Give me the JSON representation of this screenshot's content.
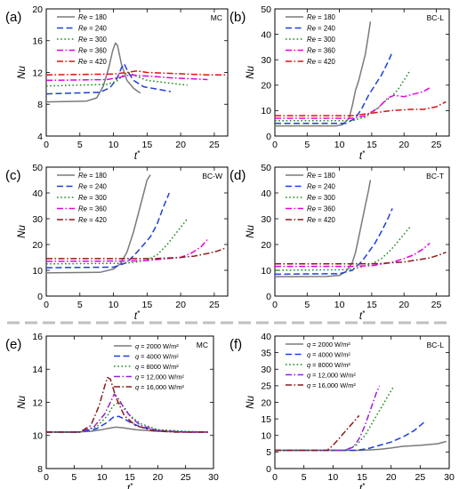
{
  "chart_data": [
    {
      "type": "line",
      "panel_label": "(a)",
      "tag": "MC",
      "xlabel": "t*",
      "ylabel": "Nu",
      "xlim": [
        0,
        27
      ],
      "ylim": [
        4,
        20
      ],
      "xticks": [
        0,
        5,
        10,
        15,
        20,
        25
      ],
      "yticks": [
        4,
        8,
        12,
        16,
        20
      ],
      "legend": "top-left",
      "series": [
        {
          "name": "Re = 180",
          "color": "#7a7a7a",
          "dash": "solid",
          "x": [
            0,
            6,
            7.5,
            8.5,
            9.3,
            9.9,
            10.3,
            10.6,
            11.2,
            12,
            13,
            14
          ],
          "y": [
            8.3,
            8.4,
            8.8,
            10.3,
            12.6,
            14.8,
            15.7,
            15.4,
            13.0,
            11.0,
            10.0,
            9.4
          ]
        },
        {
          "name": "Re = 240",
          "color": "#1e3fdc",
          "dash": "dash",
          "x": [
            0,
            8,
            9.5,
            10.5,
            11.2,
            11.6,
            12.2,
            13,
            14.5,
            16.5,
            18.5
          ],
          "y": [
            9.3,
            9.5,
            10.1,
            11.2,
            12.6,
            13.1,
            12.0,
            11.0,
            10.2,
            9.9,
            9.6
          ]
        },
        {
          "name": "Re = 300",
          "color": "#1c8a1c",
          "dash": "dot",
          "x": [
            0,
            9,
            10.5,
            11.5,
            12.2,
            13.5,
            15,
            17,
            19,
            21
          ],
          "y": [
            10.3,
            10.5,
            10.9,
            11.7,
            12.0,
            11.5,
            11.0,
            10.8,
            10.6,
            10.4
          ]
        },
        {
          "name": "Re = 360",
          "color": "#e600e6",
          "dash": "dashdot",
          "x": [
            0,
            9,
            11,
            12.5,
            14,
            16,
            19,
            22,
            24
          ],
          "y": [
            11.0,
            11.1,
            11.4,
            11.7,
            11.6,
            11.5,
            11.3,
            11.2,
            11.1
          ]
        },
        {
          "name": "Re = 420",
          "color": "#e01010",
          "dash": "dashdot",
          "x": [
            0,
            10,
            12,
            13.5,
            15,
            18,
            21,
            24,
            27
          ],
          "y": [
            11.7,
            11.8,
            12.0,
            12.2,
            12.0,
            11.9,
            11.8,
            11.7,
            11.7
          ]
        }
      ]
    },
    {
      "type": "line",
      "panel_label": "(b)",
      "tag": "BC-L",
      "xlabel": "t*",
      "ylabel": "Nu",
      "xlim": [
        0,
        27
      ],
      "ylim": [
        0,
        50
      ],
      "xticks": [
        0,
        5,
        10,
        15,
        20,
        25
      ],
      "yticks": [
        0,
        10,
        20,
        30,
        40,
        50
      ],
      "legend": "top-left",
      "series": [
        {
          "name": "Re = 180",
          "color": "#7a7a7a",
          "dash": "solid",
          "x": [
            0,
            9.5,
            10.5,
            11.5,
            12,
            12.5,
            13,
            13.5,
            14,
            14.5,
            14.8
          ],
          "y": [
            4.0,
            4.0,
            4.5,
            7.0,
            12.0,
            18.0,
            22.0,
            27.0,
            32.0,
            40.0,
            45.0
          ]
        },
        {
          "name": "Re = 240",
          "color": "#1e3fdc",
          "dash": "dash",
          "x": [
            0,
            11,
            12.5,
            13.5,
            14.5,
            15.5,
            16.5,
            17.5,
            18.2
          ],
          "y": [
            5.0,
            5.0,
            7.0,
            11.0,
            16.0,
            20.0,
            24.0,
            29.0,
            33.0
          ]
        },
        {
          "name": "Re = 300",
          "color": "#1c8a1c",
          "dash": "dot",
          "x": [
            0,
            12,
            14,
            15.5,
            17,
            18,
            19,
            20,
            21
          ],
          "y": [
            6.0,
            6.0,
            7.5,
            10.0,
            13.5,
            15.5,
            18.0,
            22.0,
            26.0
          ]
        },
        {
          "name": "Re = 360",
          "color": "#e600e6",
          "dash": "dashdot",
          "x": [
            0,
            12,
            14,
            16,
            17.5,
            18.5,
            20,
            21.5,
            23,
            24
          ],
          "y": [
            7.0,
            7.0,
            8.0,
            11.0,
            15.0,
            16.0,
            15.5,
            16.5,
            17.5,
            19.0
          ]
        },
        {
          "name": "Re = 420",
          "color": "#e01010",
          "dash": "dashdot",
          "x": [
            0,
            12,
            15,
            18,
            21,
            23,
            25,
            26.5
          ],
          "y": [
            8.0,
            8.0,
            9.0,
            10.0,
            10.5,
            10.5,
            11.5,
            13.5
          ]
        }
      ]
    },
    {
      "type": "line",
      "panel_label": "(c)",
      "tag": "BC-W",
      "xlabel": "t*",
      "ylabel": "Nu",
      "xlim": [
        0,
        27
      ],
      "ylim": [
        0,
        50
      ],
      "xticks": [
        0,
        5,
        10,
        15,
        20,
        25
      ],
      "yticks": [
        0,
        10,
        20,
        30,
        40,
        50
      ],
      "legend": "top-left",
      "series": [
        {
          "name": "Re = 180",
          "color": "#7a7a7a",
          "dash": "solid",
          "x": [
            0,
            8,
            10,
            11,
            12,
            13,
            13.5,
            14,
            14.5,
            15,
            15.5
          ],
          "y": [
            9.0,
            9.2,
            10.5,
            12.5,
            17.0,
            25.0,
            30.0,
            35.0,
            40.0,
            45.0,
            47.0
          ]
        },
        {
          "name": "Re = 240",
          "color": "#1e3fdc",
          "dash": "dash",
          "x": [
            0,
            10,
            12,
            13.5,
            14.5,
            15.5,
            16.5,
            17.5,
            18.3
          ],
          "y": [
            11.0,
            11.2,
            13.0,
            17.0,
            20.0,
            23.0,
            28.0,
            35.0,
            40.0
          ]
        },
        {
          "name": "Re = 300",
          "color": "#1c8a1c",
          "dash": "dot",
          "x": [
            0,
            11,
            13,
            15,
            16.5,
            18,
            19.5,
            21
          ],
          "y": [
            12.5,
            12.7,
            13.0,
            14.0,
            16.0,
            20.0,
            25.0,
            30.0
          ]
        },
        {
          "name": "Re = 360",
          "color": "#e600e6",
          "dash": "dashdot",
          "x": [
            0,
            12,
            15,
            18,
            20,
            21.5,
            23,
            24
          ],
          "y": [
            13.5,
            13.6,
            13.8,
            14.5,
            15.0,
            16.5,
            19.0,
            22.0
          ]
        },
        {
          "name": "Re = 420",
          "color": "#8b1a1a",
          "dash": "dashdot",
          "x": [
            0,
            12,
            16,
            20,
            22,
            24,
            25.5,
            26.5
          ],
          "y": [
            14.5,
            14.5,
            14.5,
            15.0,
            15.5,
            16.5,
            17.5,
            18.5
          ]
        }
      ]
    },
    {
      "type": "line",
      "panel_label": "(d)",
      "tag": "BC-T",
      "xlabel": "t*",
      "ylabel": "Nu",
      "xlim": [
        0,
        27
      ],
      "ylim": [
        0,
        50
      ],
      "xticks": [
        0,
        5,
        10,
        15,
        20,
        25
      ],
      "yticks": [
        0,
        10,
        20,
        30,
        40,
        50
      ],
      "legend": "top-left",
      "series": [
        {
          "name": "Re = 180",
          "color": "#7a7a7a",
          "dash": "solid",
          "x": [
            0,
            8,
            10,
            11,
            12,
            12.5,
            13,
            13.5,
            14,
            14.5,
            14.8
          ],
          "y": [
            7.5,
            7.6,
            8.0,
            9.5,
            13.0,
            17.0,
            23.0,
            29.0,
            35.0,
            41.0,
            45.0
          ]
        },
        {
          "name": "Re = 240",
          "color": "#1e3fdc",
          "dash": "dash",
          "x": [
            0,
            10,
            12,
            13.5,
            14.5,
            15.5,
            16.5,
            17.5,
            18.2
          ],
          "y": [
            8.5,
            8.7,
            10.0,
            13.5,
            17.0,
            20.5,
            25.0,
            30.0,
            34.0
          ]
        },
        {
          "name": "Re = 300",
          "color": "#1c8a1c",
          "dash": "dot",
          "x": [
            0,
            11,
            13,
            15,
            16.5,
            18,
            19.5,
            21
          ],
          "y": [
            10.0,
            10.2,
            11.0,
            12.5,
            14.5,
            18.0,
            22.5,
            27.0
          ]
        },
        {
          "name": "Re = 360",
          "color": "#e600e6",
          "dash": "dashdot",
          "x": [
            0,
            12,
            15,
            18,
            20,
            21.5,
            22.8,
            24
          ],
          "y": [
            11.5,
            11.5,
            11.8,
            13.0,
            14.5,
            16.0,
            18.0,
            20.5
          ]
        },
        {
          "name": "Re = 420",
          "color": "#8b1a1a",
          "dash": "dashdot",
          "x": [
            0,
            12,
            16,
            20,
            22,
            24,
            25.5,
            26.5
          ],
          "y": [
            12.5,
            12.5,
            12.6,
            13.2,
            14.0,
            14.8,
            16.0,
            17.0
          ]
        }
      ]
    },
    {
      "type": "line",
      "panel_label": "(e)",
      "tag": "MC",
      "xlabel": "t*",
      "ylabel": "Nu",
      "xlim": [
        0,
        30
      ],
      "ylim": [
        8,
        16
      ],
      "xticks": [
        0,
        5,
        10,
        15,
        20,
        25,
        30
      ],
      "yticks": [
        8,
        10,
        12,
        14,
        16
      ],
      "legend": "top-right",
      "series": [
        {
          "name": "q = 2000 W/m²",
          "color": "#7a7a7a",
          "dash": "solid",
          "x": [
            0,
            5,
            8,
            10,
            11.5,
            12.5,
            14,
            16,
            20,
            25,
            29
          ],
          "y": [
            10.2,
            10.2,
            10.25,
            10.35,
            10.45,
            10.5,
            10.45,
            10.35,
            10.25,
            10.2,
            10.2
          ]
        },
        {
          "name": "q = 4000 W/m²",
          "color": "#1e3fdc",
          "dash": "dash",
          "x": [
            0,
            6,
            9,
            11,
            12,
            13,
            14,
            15,
            17,
            20,
            25,
            29
          ],
          "y": [
            10.2,
            10.2,
            10.4,
            10.8,
            11.1,
            11.15,
            11.0,
            10.8,
            10.5,
            10.3,
            10.2,
            10.2
          ]
        },
        {
          "name": "q = 8000 W/m²",
          "color": "#1c8a1c",
          "dash": "dot",
          "x": [
            0,
            6,
            9,
            11,
            12,
            13,
            14,
            15,
            17,
            20,
            25,
            29
          ],
          "y": [
            10.2,
            10.2,
            10.5,
            11.2,
            11.8,
            12.0,
            11.7,
            11.2,
            10.7,
            10.35,
            10.25,
            10.2
          ]
        },
        {
          "name": "q = 12,000 W/m²",
          "color": "#9b20d9",
          "dash": "dashdot",
          "x": [
            0,
            6,
            8.5,
            10.5,
            11.5,
            12.2,
            13,
            14,
            15.5,
            17,
            20,
            25,
            29
          ],
          "y": [
            10.2,
            10.2,
            10.5,
            11.3,
            12.0,
            12.5,
            12.2,
            11.6,
            11.0,
            10.6,
            10.3,
            10.2,
            10.2
          ]
        },
        {
          "name": "q = 16,000 W/m²",
          "color": "#8b1a1a",
          "dash": "dashdot",
          "x": [
            0,
            6,
            8,
            9.5,
            10.5,
            11,
            11.5,
            12.5,
            14,
            16,
            19,
            23,
            29
          ],
          "y": [
            10.2,
            10.2,
            10.6,
            11.8,
            13.0,
            13.5,
            13.4,
            12.3,
            11.2,
            10.6,
            10.3,
            10.2,
            10.2
          ]
        }
      ]
    },
    {
      "type": "line",
      "panel_label": "(f)",
      "tag": "BC-L",
      "xlabel": "t*",
      "ylabel": "Nu",
      "xlim": [
        0,
        30
      ],
      "ylim": [
        0,
        40
      ],
      "xticks": [
        0,
        5,
        10,
        15,
        20,
        25,
        30
      ],
      "yticks": [
        0,
        5,
        10,
        15,
        20,
        25,
        30,
        35,
        40
      ],
      "legend": "top-left",
      "series": [
        {
          "name": "q = 2000 W/m²",
          "color": "#7a7a7a",
          "dash": "solid",
          "x": [
            0,
            15,
            18,
            20,
            22,
            25,
            28,
            29.5
          ],
          "y": [
            5.5,
            5.5,
            5.8,
            6.2,
            6.7,
            7.0,
            7.5,
            8.2
          ]
        },
        {
          "name": "q = 4000 W/m²",
          "color": "#1e3fdc",
          "dash": "dash",
          "x": [
            0,
            14,
            16,
            18,
            20,
            22,
            24,
            26
          ],
          "y": [
            5.5,
            5.5,
            6.0,
            7.0,
            8.0,
            9.5,
            11.5,
            14.5
          ]
        },
        {
          "name": "q = 8000 W/m²",
          "color": "#1c8a1c",
          "dash": "dot",
          "x": [
            0,
            12,
            14,
            15.5,
            16.5,
            17.5,
            18.5,
            19.5,
            20.5
          ],
          "y": [
            5.5,
            5.5,
            7.0,
            10.0,
            13.0,
            16.0,
            19.0,
            22.0,
            25.0
          ]
        },
        {
          "name": "q = 12,000 W/m²",
          "color": "#9b20d9",
          "dash": "dashdot",
          "x": [
            0,
            12,
            13.5,
            14.5,
            15.5,
            16.5,
            17.5,
            18
          ],
          "y": [
            5.5,
            5.5,
            6.5,
            9.0,
            13.0,
            18.0,
            23.0,
            25.0
          ]
        },
        {
          "name": "q = 16,000 W/m²",
          "color": "#8b1a1a",
          "dash": "dashdot",
          "x": [
            0,
            9,
            10,
            11,
            12,
            13,
            13.5,
            14,
            14.5
          ],
          "y": [
            5.5,
            5.5,
            7.0,
            9.0,
            11.0,
            13.0,
            14.0,
            15.0,
            16.0
          ]
        }
      ]
    }
  ]
}
